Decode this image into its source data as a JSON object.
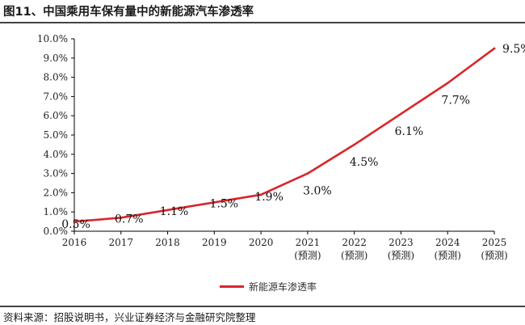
{
  "title": "图11、中国乘用车保有量中的新能源汽车渗透率",
  "source": "资料来源：招股说明书，兴业证券经济与金融研究院整理",
  "chart_data": {
    "type": "line",
    "title": "图11、中国乘用车保有量中的新能源汽车渗透率",
    "x": [
      "2016",
      "2017",
      "2018",
      "2019",
      "2020",
      "2021",
      "2022",
      "2023",
      "2024",
      "2025"
    ],
    "x_sublabels": [
      "",
      "",
      "",
      "",
      "",
      "(预测)",
      "(预测)",
      "(预测)",
      "(预测)",
      "(预测)"
    ],
    "series": [
      {
        "name": "新能源车渗透率",
        "color": "#d9262b",
        "values": [
          0.5,
          0.7,
          1.1,
          1.5,
          1.9,
          3.0,
          4.5,
          6.1,
          7.7,
          9.5
        ],
        "labels": [
          "0.5%",
          "0.7%",
          "1.1%",
          "1.5%",
          "1.9%",
          "3.0%",
          "4.5%",
          "6.1%",
          "7.7%",
          "9.5%"
        ]
      }
    ],
    "ylim": [
      0,
      10
    ],
    "y_ticks": [
      "0.0%",
      "1.0%",
      "2.0%",
      "3.0%",
      "4.0%",
      "5.0%",
      "6.0%",
      "7.0%",
      "8.0%",
      "9.0%",
      "10.0%"
    ],
    "grid": false,
    "legend": "bottom-center"
  }
}
